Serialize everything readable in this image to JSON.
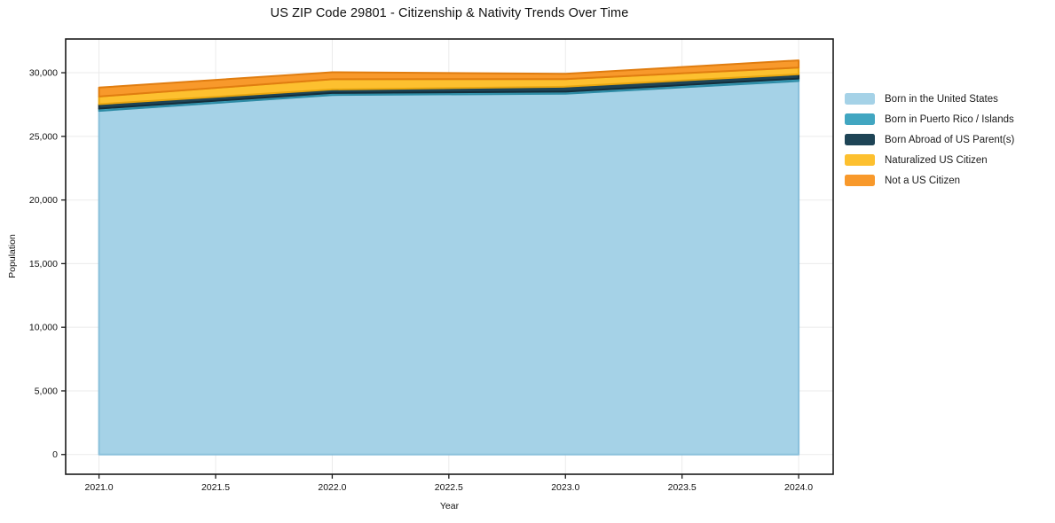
{
  "chart_data": {
    "type": "area",
    "stacked": true,
    "title": "US ZIP Code 29801 - Citizenship & Nativity Trends Over Time",
    "xlabel": "Year",
    "ylabel": "Population",
    "x": [
      2021,
      2022,
      2023,
      2024
    ],
    "xlim": [
      2020.857,
      2024.148
    ],
    "ylim": [
      -1550,
      32650
    ],
    "grid": true,
    "legend_position": "right-outside",
    "xticks": [
      {
        "v": 2021.0,
        "label": "2021.0"
      },
      {
        "v": 2021.5,
        "label": "2021.5"
      },
      {
        "v": 2022.0,
        "label": "2022.0"
      },
      {
        "v": 2022.5,
        "label": "2022.5"
      },
      {
        "v": 2023.0,
        "label": "2023.0"
      },
      {
        "v": 2023.5,
        "label": "2023.5"
      },
      {
        "v": 2024.0,
        "label": "2024.0"
      }
    ],
    "yticks": [
      {
        "v": 0,
        "label": "0"
      },
      {
        "v": 5000,
        "label": "5,000"
      },
      {
        "v": 10000,
        "label": "10,000"
      },
      {
        "v": 15000,
        "label": "15,000"
      },
      {
        "v": 20000,
        "label": "20,000"
      },
      {
        "v": 25000,
        "label": "25,000"
      },
      {
        "v": 30000,
        "label": "30,000"
      }
    ],
    "series": [
      {
        "name": "Born in the United States",
        "color": "#A5D2E7",
        "edge": "#8AC0DB",
        "values": [
          27000,
          28250,
          28350,
          29350
        ]
      },
      {
        "name": "Born in Puerto Rico / Islands",
        "color": "#41A6C1",
        "edge": "#2E8CA6",
        "values": [
          180,
          160,
          160,
          190
        ]
      },
      {
        "name": "Born Abroad of US Parent(s)",
        "color": "#1E4456",
        "edge": "#142E3B",
        "values": [
          350,
          280,
          390,
          340
        ]
      },
      {
        "name": "Naturalized US Citizen",
        "color": "#FDC02F",
        "edge": "#E8A60F",
        "values": [
          600,
          800,
          600,
          530
        ]
      },
      {
        "name": "Not a US Citizen",
        "color": "#F8992B",
        "edge": "#E07D10",
        "values": [
          700,
          550,
          420,
          560
        ]
      }
    ],
    "totals": [
      28830,
      30040,
      29920,
      30970
    ],
    "colors": {
      "grid": "#EBEBEB",
      "frame": "#1A1A1A",
      "tick_text": "#111111"
    }
  }
}
